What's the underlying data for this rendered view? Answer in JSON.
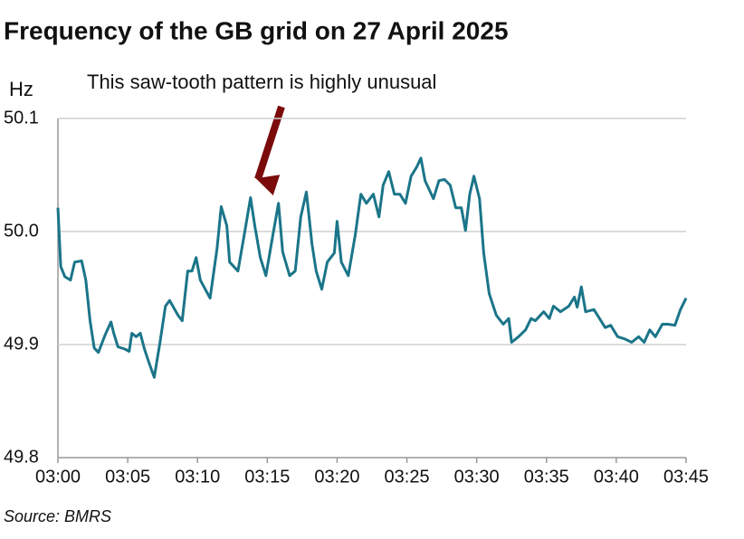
{
  "chart_data": {
    "type": "line",
    "title": "Frequency of the GB grid on 27 April 2025",
    "y_label": "Hz",
    "annotation": "This saw-tooth pattern is highly unusual",
    "source": "Source: BMRS",
    "xlim": [
      0,
      45
    ],
    "xticks": [
      {
        "value": 0,
        "label": "03:00"
      },
      {
        "value": 5,
        "label": "03:05"
      },
      {
        "value": 10,
        "label": "03:10"
      },
      {
        "value": 15,
        "label": "03:15"
      },
      {
        "value": 20,
        "label": "03:20"
      },
      {
        "value": 25,
        "label": "03:25"
      },
      {
        "value": 30,
        "label": "03:30"
      },
      {
        "value": 35,
        "label": "03:35"
      },
      {
        "value": 40,
        "label": "03:40"
      },
      {
        "value": 45,
        "label": "03:45"
      }
    ],
    "ylim": [
      49.8,
      50.1
    ],
    "yticks": [
      49.8,
      49.9,
      {
        "value": 50,
        "label": "50.0"
      },
      50.1
    ],
    "grid": true,
    "x": [
      0,
      0.2,
      0.5,
      0.9,
      1.2,
      1.7,
      2.0,
      2.3,
      2.6,
      2.9,
      3.4,
      3.8,
      4.0,
      4.3,
      4.8,
      5.1,
      5.3,
      5.6,
      5.9,
      6.2,
      6.5,
      6.9,
      7.3,
      7.7,
      8.0,
      8.6,
      8.9,
      9.3,
      9.6,
      9.9,
      10.2,
      10.9,
      11.4,
      11.7,
      12.1,
      12.3,
      12.9,
      13.4,
      13.8,
      14.1,
      14.5,
      14.9,
      15.4,
      15.8,
      16.1,
      16.6,
      17.0,
      17.4,
      17.8,
      18.2,
      18.5,
      18.9,
      19.3,
      19.8,
      20.0,
      20.3,
      20.8,
      21.3,
      21.7,
      22.1,
      22.6,
      23.0,
      23.3,
      23.7,
      24.1,
      24.5,
      24.9,
      25.3,
      25.7,
      26.0,
      26.3,
      26.9,
      27.3,
      27.7,
      28.1,
      28.5,
      28.9,
      29.2,
      29.5,
      29.8,
      30.2,
      30.5,
      30.9,
      31.4,
      31.9,
      32.3,
      32.5,
      33.0,
      33.5,
      33.9,
      34.2,
      34.8,
      35.2,
      35.5,
      36.0,
      36.6,
      37.0,
      37.2,
      37.5,
      37.8,
      38.4,
      38.8,
      39.2,
      39.6,
      40.1,
      40.6,
      41.1,
      41.6,
      42.0,
      42.4,
      42.8,
      43.3,
      43.7,
      44.2,
      44.6,
      45.0
    ],
    "series": [
      {
        "color": "#1b7589",
        "values": [
          50.021,
          49.969,
          49.96,
          49.957,
          49.973,
          49.974,
          49.957,
          49.921,
          49.897,
          49.893,
          49.909,
          49.92,
          49.91,
          49.898,
          49.896,
          49.894,
          49.91,
          49.907,
          49.91,
          49.896,
          49.885,
          49.871,
          49.901,
          49.934,
          49.939,
          49.926,
          49.921,
          49.965,
          49.965,
          49.977,
          49.957,
          49.941,
          49.985,
          50.022,
          50.005,
          49.973,
          49.965,
          50.001,
          50.03,
          50.005,
          49.977,
          49.961,
          49.997,
          50.025,
          49.982,
          49.961,
          49.965,
          50.013,
          50.035,
          49.989,
          49.965,
          49.949,
          49.973,
          49.981,
          50.009,
          49.973,
          49.961,
          49.997,
          50.033,
          50.025,
          50.033,
          50.013,
          50.041,
          50.053,
          50.033,
          50.033,
          50.025,
          50.049,
          50.057,
          50.065,
          50.045,
          50.029,
          50.045,
          50.046,
          50.041,
          50.021,
          50.021,
          50.001,
          50.033,
          50.049,
          50.029,
          49.981,
          49.945,
          49.926,
          49.918,
          49.923,
          49.902,
          49.907,
          49.913,
          49.923,
          49.921,
          49.929,
          49.923,
          49.934,
          49.929,
          49.934,
          49.942,
          49.933,
          49.951,
          49.929,
          49.931,
          49.923,
          49.915,
          49.917,
          49.907,
          49.905,
          49.902,
          49.907,
          49.902,
          49.913,
          49.907,
          49.918,
          49.918,
          49.917,
          49.931,
          49.941
        ]
      }
    ]
  }
}
